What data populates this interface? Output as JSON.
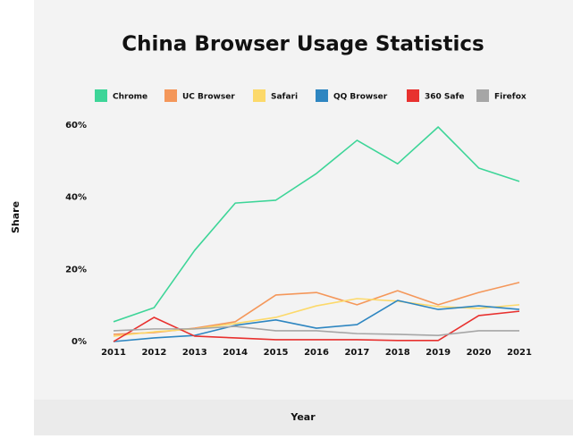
{
  "chart_data": {
    "type": "line",
    "title": "China Browser Usage Statistics",
    "x_label": "Year",
    "y_label": "Share",
    "categories": [
      "2011",
      "2012",
      "2013",
      "2014",
      "2015",
      "2016",
      "2017",
      "2018",
      "2019",
      "2020",
      "2021"
    ],
    "series": [
      {
        "name": "Chrome",
        "color": "#3dd598",
        "values": [
          5.5,
          9.4,
          25.3,
          38.4,
          39.2,
          46.6,
          55.8,
          49.3,
          59.5,
          48.1,
          44.4
        ]
      },
      {
        "name": "UC Browser",
        "color": "#f4975a",
        "values": [
          2,
          2.5,
          3.7,
          5.5,
          12.9,
          13.6,
          10.2,
          14.1,
          10.2,
          13.6,
          16.4
        ]
      },
      {
        "name": "Safari",
        "color": "#fcd96a",
        "values": [
          1.5,
          2.7,
          3.5,
          5,
          6.7,
          9.9,
          11.9,
          11.2,
          9.7,
          9.2,
          10.2
        ]
      },
      {
        "name": "QQ Browser",
        "color": "#2e86c1",
        "values": [
          0,
          1,
          1.7,
          4.5,
          6,
          3.7,
          4.7,
          11.4,
          8.9,
          9.9,
          8.9
        ]
      },
      {
        "name": "360 Safe",
        "color": "#e8312f",
        "values": [
          0,
          6.7,
          1.5,
          1,
          0.5,
          0.5,
          0.5,
          0.3,
          0.3,
          7.2,
          8.4
        ]
      },
      {
        "name": "Firefox",
        "color": "#a6a6a6",
        "values": [
          3,
          3.5,
          3.5,
          4.2,
          3,
          3,
          2.2,
          2,
          1.7,
          3,
          3
        ]
      }
    ],
    "ylim": [
      0,
      60
    ],
    "yticks": [
      {
        "value": 0,
        "label": "0%"
      },
      {
        "value": 20,
        "label": "20%"
      },
      {
        "value": 40,
        "label": "40%"
      },
      {
        "value": 60,
        "label": "60%"
      }
    ],
    "grid": false,
    "legend": "top"
  }
}
